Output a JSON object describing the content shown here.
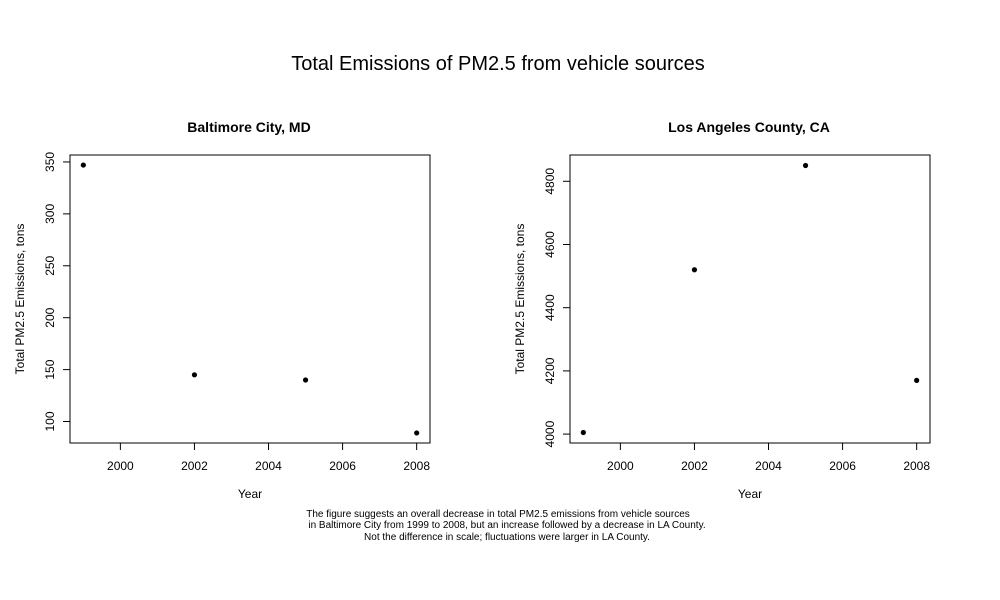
{
  "figure": {
    "title": "Total Emissions of PM2.5 from vehicle sources",
    "caption": [
      "The figure suggests an overall decrease in total PM2.5 emissions from vehicle sources",
      "in Baltimore City from 1999 to 2008, but an increase followed by a decrease in LA County.",
      "Not the difference in scale; fluctuations were larger in LA County."
    ]
  },
  "chart_data": [
    {
      "type": "scatter",
      "title": "Baltimore City, MD",
      "xlabel": "Year",
      "ylabel": "Total PM2.5 Emissions, tons",
      "x": [
        1999,
        2002,
        2005,
        2008
      ],
      "y": [
        347,
        145,
        140,
        89
      ],
      "xlim": [
        1998.64,
        2008.36
      ],
      "ylim": [
        79.3,
        356.7
      ],
      "xticks": [
        2000,
        2002,
        2004,
        2006,
        2008
      ],
      "yticks": [
        100,
        150,
        200,
        250,
        300,
        350
      ],
      "grid": false,
      "marker_color": "#000000"
    },
    {
      "type": "scatter",
      "title": "Los Angeles County, CA",
      "xlabel": "Year",
      "ylabel": "Total PM2.5 Emissions, tons",
      "x": [
        1999,
        2002,
        2005,
        2008
      ],
      "y": [
        4005,
        4520,
        4850,
        4170
      ],
      "xlim": [
        1998.64,
        2008.36
      ],
      "ylim": [
        3971.8,
        4883.2
      ],
      "xticks": [
        2000,
        2002,
        2004,
        2006,
        2008
      ],
      "yticks": [
        4000,
        4200,
        4400,
        4600,
        4800
      ],
      "grid": false,
      "marker_color": "#000000"
    }
  ]
}
